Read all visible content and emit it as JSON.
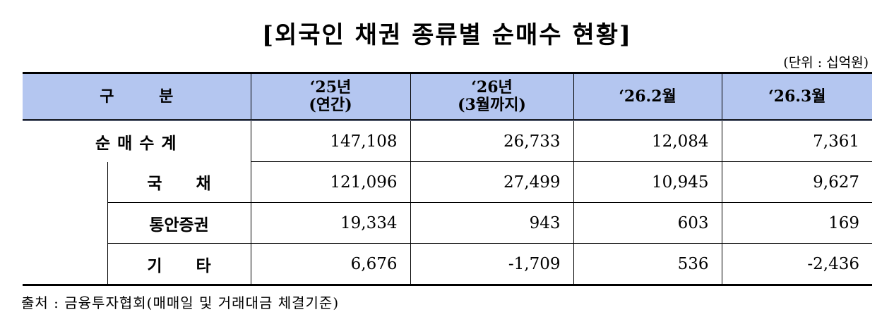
{
  "title": "[외국인 채권 종류별 순매수 현황]",
  "unit": "(단위 : 십억원)",
  "header": {
    "gubun": "구 분",
    "col1_line1": "‘25년",
    "col1_line2": "(연간)",
    "col2_line1": "‘26년",
    "col2_line2": "(3월까지)",
    "col3": "‘26.2월",
    "col4": "‘26.3월"
  },
  "rows": [
    {
      "label": "순매수계",
      "values": [
        "147,108",
        "26,733",
        "12,084",
        "7,361"
      ]
    },
    {
      "label": "국 채",
      "values": [
        "121,096",
        "27,499",
        "10,945",
        "9,627"
      ]
    },
    {
      "label": "통안증권",
      "values": [
        "19,334",
        "943",
        "603",
        "169"
      ]
    },
    {
      "label": "기 타",
      "values": [
        "6,676",
        "-1,709",
        "536",
        "-2,436"
      ]
    }
  ],
  "source": "출처 : 금융투자협회(매매일 및 거래대금 체결기준)"
}
